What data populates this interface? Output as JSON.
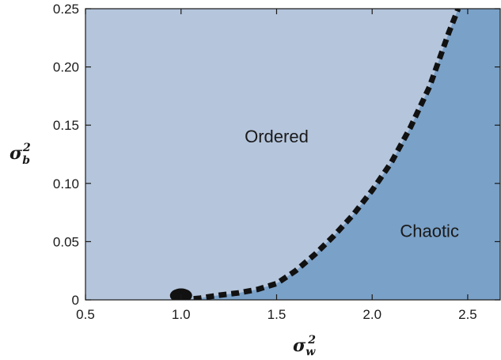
{
  "chart_data": {
    "type": "area",
    "title": "",
    "xlabel": {
      "base": "σ",
      "sub": "w",
      "sup": "2"
    },
    "ylabel": {
      "base": "σ",
      "sub": "b",
      "sup": "2"
    },
    "xlim": [
      0.5,
      2.67
    ],
    "ylim": [
      0,
      0.25
    ],
    "x_ticks": [
      0.5,
      1.0,
      1.5,
      2.0,
      2.5
    ],
    "x_tick_labels": [
      "0.5",
      "1.0",
      "1.5",
      "2.0",
      "2.5"
    ],
    "y_ticks": [
      0,
      0.05,
      0.1,
      0.15,
      0.2,
      0.25
    ],
    "y_tick_labels": [
      "0",
      "0.05",
      "0.10",
      "0.15",
      "0.20",
      "0.25"
    ],
    "grid": false,
    "regions": [
      {
        "label": "Ordered",
        "x": 1.5,
        "y": 0.139,
        "color": "#b4c5dc"
      },
      {
        "label": "Chaotic",
        "x": 2.3,
        "y": 0.058,
        "color": "#7aa1c8"
      }
    ],
    "boundary": {
      "style": "dashed",
      "color": "#111111",
      "points": [
        [
          1.0,
          0.0
        ],
        [
          1.1,
          0.0015
        ],
        [
          1.2,
          0.004
        ],
        [
          1.3,
          0.006
        ],
        [
          1.4,
          0.009
        ],
        [
          1.5,
          0.014
        ],
        [
          1.6,
          0.025
        ],
        [
          1.7,
          0.039
        ],
        [
          1.8,
          0.055
        ],
        [
          1.9,
          0.073
        ],
        [
          2.0,
          0.094
        ],
        [
          2.1,
          0.118
        ],
        [
          2.2,
          0.148
        ],
        [
          2.3,
          0.183
        ],
        [
          2.4,
          0.229
        ],
        [
          2.45,
          0.25
        ]
      ]
    },
    "marker": {
      "x": 1.0,
      "y": 0.001,
      "color": "#111111"
    }
  }
}
